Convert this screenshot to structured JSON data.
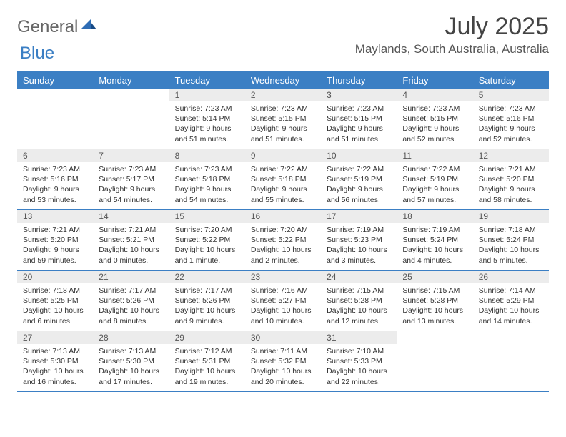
{
  "brand": {
    "part1": "General",
    "part2": "Blue"
  },
  "title": "July 2025",
  "location": "Maylands, South Australia, Australia",
  "colors": {
    "accent": "#3b7fc4",
    "dayNumBg": "#ececec",
    "text": "#333333",
    "bg": "#ffffff"
  },
  "layout": {
    "columns": 7,
    "dayNumFontSize": 12,
    "bodyFontSize": 10.5,
    "titleFontSize": 34,
    "locationFontSize": 17,
    "dowFontSize": 13
  },
  "daysOfWeek": [
    "Sunday",
    "Monday",
    "Tuesday",
    "Wednesday",
    "Thursday",
    "Friday",
    "Saturday"
  ],
  "weeks": [
    [
      null,
      null,
      {
        "n": "1",
        "sr": "7:23 AM",
        "ss": "5:14 PM",
        "dl": "9 hours and 51 minutes."
      },
      {
        "n": "2",
        "sr": "7:23 AM",
        "ss": "5:15 PM",
        "dl": "9 hours and 51 minutes."
      },
      {
        "n": "3",
        "sr": "7:23 AM",
        "ss": "5:15 PM",
        "dl": "9 hours and 51 minutes."
      },
      {
        "n": "4",
        "sr": "7:23 AM",
        "ss": "5:15 PM",
        "dl": "9 hours and 52 minutes."
      },
      {
        "n": "5",
        "sr": "7:23 AM",
        "ss": "5:16 PM",
        "dl": "9 hours and 52 minutes."
      }
    ],
    [
      {
        "n": "6",
        "sr": "7:23 AM",
        "ss": "5:16 PM",
        "dl": "9 hours and 53 minutes."
      },
      {
        "n": "7",
        "sr": "7:23 AM",
        "ss": "5:17 PM",
        "dl": "9 hours and 54 minutes."
      },
      {
        "n": "8",
        "sr": "7:23 AM",
        "ss": "5:18 PM",
        "dl": "9 hours and 54 minutes."
      },
      {
        "n": "9",
        "sr": "7:22 AM",
        "ss": "5:18 PM",
        "dl": "9 hours and 55 minutes."
      },
      {
        "n": "10",
        "sr": "7:22 AM",
        "ss": "5:19 PM",
        "dl": "9 hours and 56 minutes."
      },
      {
        "n": "11",
        "sr": "7:22 AM",
        "ss": "5:19 PM",
        "dl": "9 hours and 57 minutes."
      },
      {
        "n": "12",
        "sr": "7:21 AM",
        "ss": "5:20 PM",
        "dl": "9 hours and 58 minutes."
      }
    ],
    [
      {
        "n": "13",
        "sr": "7:21 AM",
        "ss": "5:20 PM",
        "dl": "9 hours and 59 minutes."
      },
      {
        "n": "14",
        "sr": "7:21 AM",
        "ss": "5:21 PM",
        "dl": "10 hours and 0 minutes."
      },
      {
        "n": "15",
        "sr": "7:20 AM",
        "ss": "5:22 PM",
        "dl": "10 hours and 1 minute."
      },
      {
        "n": "16",
        "sr": "7:20 AM",
        "ss": "5:22 PM",
        "dl": "10 hours and 2 minutes."
      },
      {
        "n": "17",
        "sr": "7:19 AM",
        "ss": "5:23 PM",
        "dl": "10 hours and 3 minutes."
      },
      {
        "n": "18",
        "sr": "7:19 AM",
        "ss": "5:24 PM",
        "dl": "10 hours and 4 minutes."
      },
      {
        "n": "19",
        "sr": "7:18 AM",
        "ss": "5:24 PM",
        "dl": "10 hours and 5 minutes."
      }
    ],
    [
      {
        "n": "20",
        "sr": "7:18 AM",
        "ss": "5:25 PM",
        "dl": "10 hours and 6 minutes."
      },
      {
        "n": "21",
        "sr": "7:17 AM",
        "ss": "5:26 PM",
        "dl": "10 hours and 8 minutes."
      },
      {
        "n": "22",
        "sr": "7:17 AM",
        "ss": "5:26 PM",
        "dl": "10 hours and 9 minutes."
      },
      {
        "n": "23",
        "sr": "7:16 AM",
        "ss": "5:27 PM",
        "dl": "10 hours and 10 minutes."
      },
      {
        "n": "24",
        "sr": "7:15 AM",
        "ss": "5:28 PM",
        "dl": "10 hours and 12 minutes."
      },
      {
        "n": "25",
        "sr": "7:15 AM",
        "ss": "5:28 PM",
        "dl": "10 hours and 13 minutes."
      },
      {
        "n": "26",
        "sr": "7:14 AM",
        "ss": "5:29 PM",
        "dl": "10 hours and 14 minutes."
      }
    ],
    [
      {
        "n": "27",
        "sr": "7:13 AM",
        "ss": "5:30 PM",
        "dl": "10 hours and 16 minutes."
      },
      {
        "n": "28",
        "sr": "7:13 AM",
        "ss": "5:30 PM",
        "dl": "10 hours and 17 minutes."
      },
      {
        "n": "29",
        "sr": "7:12 AM",
        "ss": "5:31 PM",
        "dl": "10 hours and 19 minutes."
      },
      {
        "n": "30",
        "sr": "7:11 AM",
        "ss": "5:32 PM",
        "dl": "10 hours and 20 minutes."
      },
      {
        "n": "31",
        "sr": "7:10 AM",
        "ss": "5:33 PM",
        "dl": "10 hours and 22 minutes."
      },
      null,
      null
    ]
  ],
  "labels": {
    "sunrise": "Sunrise:",
    "sunset": "Sunset:",
    "daylight": "Daylight:"
  }
}
